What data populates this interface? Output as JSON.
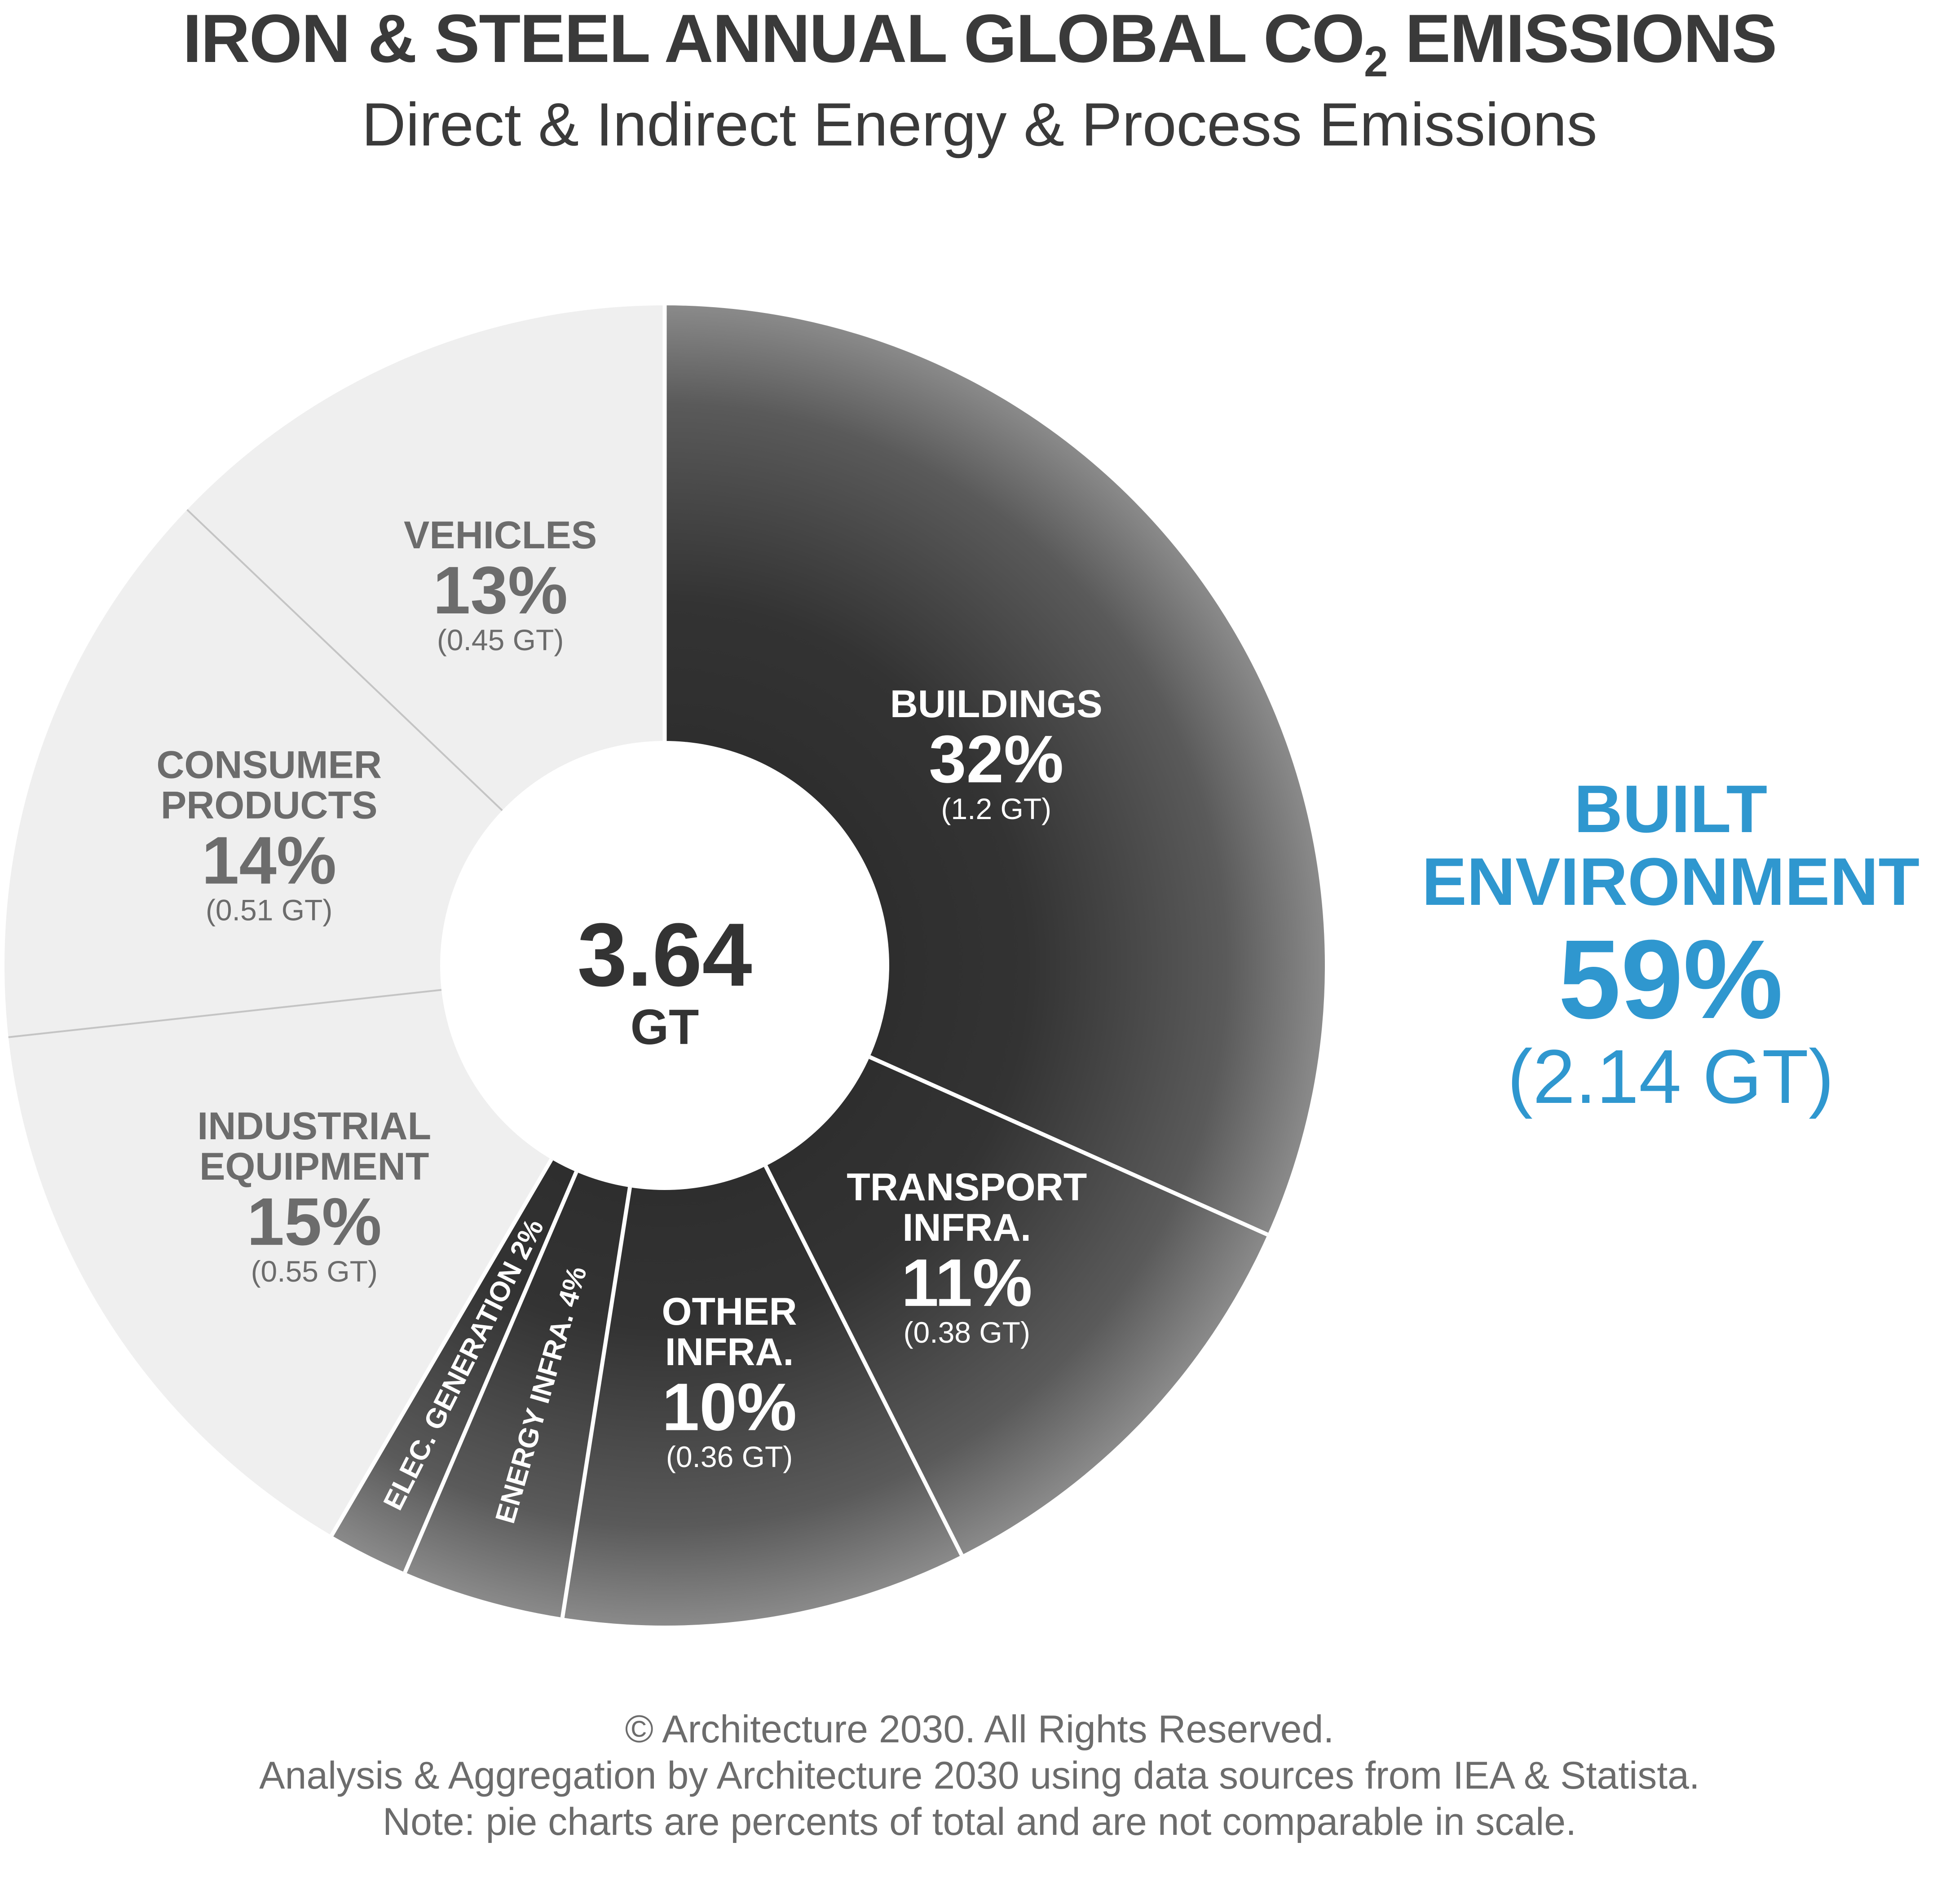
{
  "title": {
    "main": "IRON & STEEL ANNUAL GLOBAL CO",
    "subscript": "2",
    "suffix": " EMISSIONS",
    "subtitle": "Direct & Indirect Energy & Process Emissions"
  },
  "center": {
    "value": "3.64",
    "unit": "GT"
  },
  "callout": {
    "line1": "BUILT",
    "line2": "ENVIRONMENT",
    "percent": "59%",
    "value": "(2.14 GT)",
    "color": "#2f97cf"
  },
  "footer": {
    "line1": "© Architecture 2030. All Rights Reserved.",
    "line2": "Analysis & Aggregation by Architecture 2030 using data sources from IEA & Statista.",
    "line3": "Note: pie charts are percents of total and are not comparable in scale."
  },
  "chart_data": {
    "type": "pie",
    "style": "donut",
    "total_label": "3.64 GT",
    "categories": [
      "BUILDINGS",
      "TRANSPORT INFRA.",
      "OTHER INFRA.",
      "ENERGY INFRA.",
      "ELEC. GENERATION",
      "INDUSTRIAL EQUIPMENT",
      "CONSUMER PRODUCTS",
      "VEHICLES"
    ],
    "values": [
      32,
      11,
      10,
      4,
      2,
      15,
      14,
      13
    ],
    "value_unit": "%",
    "gt_values": [
      1.2,
      0.38,
      0.36,
      null,
      null,
      0.55,
      0.51,
      0.45
    ],
    "groups": [
      "built",
      "built",
      "built",
      "built",
      "built",
      "other",
      "other",
      "other"
    ],
    "segments": [
      {
        "name": "BUILDINGS",
        "lines": [
          "BUILDINGS"
        ],
        "pct": "32%",
        "gt": "(1.2 GT)",
        "group": "built"
      },
      {
        "name": "TRANSPORT INFRA.",
        "lines": [
          "TRANSPORT",
          "INFRA."
        ],
        "pct": "11%",
        "gt": "(0.38 GT)",
        "group": "built"
      },
      {
        "name": "OTHER INFRA.",
        "lines": [
          "OTHER",
          "INFRA."
        ],
        "pct": "10%",
        "gt": "(0.36 GT)",
        "group": "built"
      },
      {
        "name": "ENERGY INFRA.",
        "lines": [
          "ENERGY INFRA. 4%"
        ],
        "pct": "",
        "gt": "",
        "group": "built",
        "rotated": true
      },
      {
        "name": "ELEC. GENERATION",
        "lines": [
          "ELEC. GENERATION 2%"
        ],
        "pct": "",
        "gt": "",
        "group": "built",
        "rotated": true
      },
      {
        "name": "INDUSTRIAL EQUIPMENT",
        "lines": [
          "INDUSTRIAL",
          "EQUIPMENT"
        ],
        "pct": "15%",
        "gt": "(0.55 GT)",
        "group": "other"
      },
      {
        "name": "CONSUMER PRODUCTS",
        "lines": [
          "CONSUMER",
          "PRODUCTS"
        ],
        "pct": "14%",
        "gt": "(0.51 GT)",
        "group": "other"
      },
      {
        "name": "VEHICLES",
        "lines": [
          "VEHICLES"
        ],
        "pct": "13%",
        "gt": "(0.45 GT)",
        "group": "other"
      }
    ],
    "colors": {
      "built": "#3a3a3a",
      "other": "#efefef",
      "built_text": "#ffffff",
      "other_text": "#6c6c6c",
      "separator_built": "#ffffff",
      "separator_other": "#c4c4c4"
    },
    "start_angle_deg": 0,
    "direction": "clockwise"
  }
}
